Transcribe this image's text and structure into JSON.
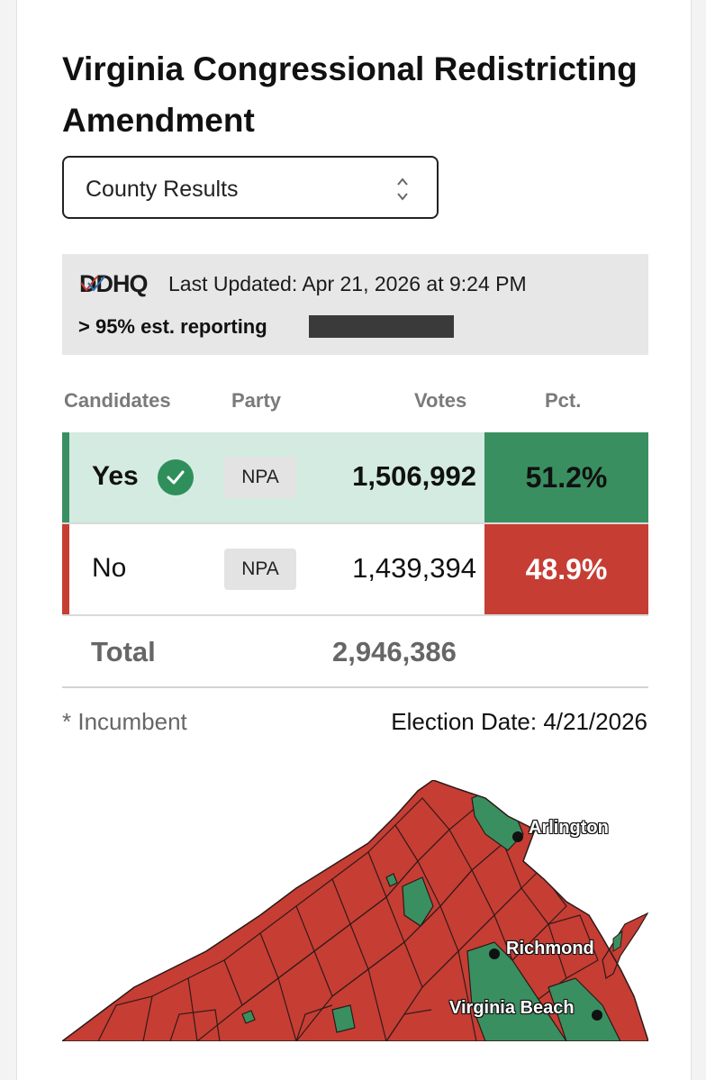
{
  "title": "Virginia Congressional Redistricting Amendment",
  "view_select": {
    "value": "County Results",
    "icon": "chevron-updown-icon"
  },
  "info": {
    "logo_text": "DDHQ",
    "last_updated": "Last Updated: Apr 21, 2026 at 9:24 PM",
    "reporting": "> 95% est. reporting",
    "reporting_fraction": 0.95
  },
  "table": {
    "headers": {
      "candidates": "Candidates",
      "party": "Party",
      "votes": "Votes",
      "pct": "Pct."
    },
    "rows": [
      {
        "name": "Yes",
        "winner": true,
        "party": "NPA",
        "votes": "1,506,992",
        "pct": "51.2%",
        "color": "#3a8f61"
      },
      {
        "name": "No",
        "winner": false,
        "party": "NPA",
        "votes": "1,439,394",
        "pct": "48.9%",
        "color": "#c63d34"
      }
    ],
    "total_label": "Total",
    "total_votes": "2,946,386"
  },
  "footer": {
    "incumbent_note": "* Incumbent",
    "election_date": "Election Date: 4/21/2026"
  },
  "map": {
    "colors": {
      "yes": "#3a8f61",
      "no": "#c63d34",
      "border": "#2a1a18"
    },
    "cities": [
      {
        "name": "Arlington"
      },
      {
        "name": "Richmond"
      },
      {
        "name": "Virginia Beach"
      }
    ]
  }
}
